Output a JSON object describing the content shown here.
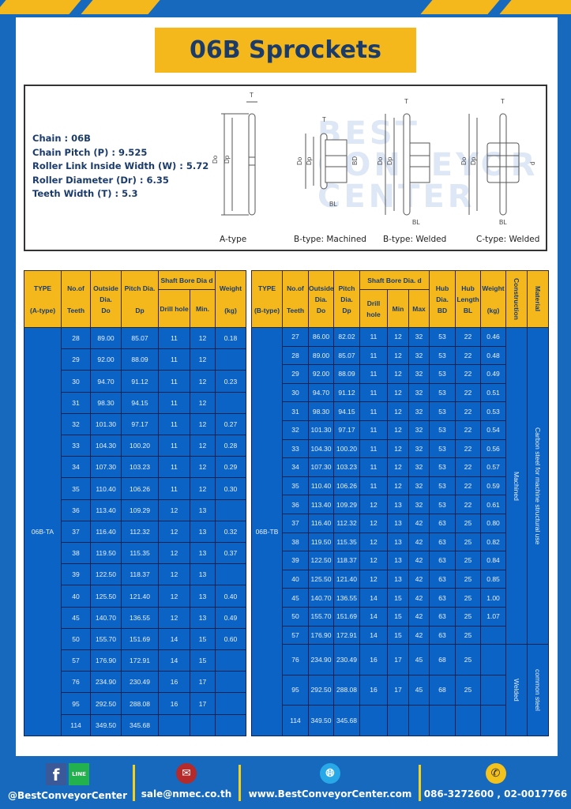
{
  "title": "06B Sprockets",
  "specs": [
    {
      "label": "Chain",
      "value": "06B",
      "text": "Chain : 06B"
    },
    {
      "label": "Chain Pitch (P)",
      "value": "9.525",
      "text": "Chain Pitch (P) : 9.525"
    },
    {
      "label": "Roller Link Inside Width (W)",
      "value": "5.72",
      "text": "Roller Link Inside Width (W) : 5.72"
    },
    {
      "label": "Roller Diameter (Dr)",
      "value": "6.35",
      "text": "Roller Diameter (Dr) : 6.35"
    },
    {
      "label": "Teeth Width (T)",
      "value": "5.3",
      "text": "Teeth Width (T) : 5.3"
    }
  ],
  "diagrams": [
    {
      "caption": "A-type"
    },
    {
      "caption": "B-type: Machined"
    },
    {
      "caption": "B-type: Welded"
    },
    {
      "caption": "C-type: Welded"
    }
  ],
  "diagram_labels": {
    "T": "T",
    "Do": "Do",
    "Dp": "Dp",
    "d": "d",
    "BD": "BD",
    "BL": "BL"
  },
  "watermark": "BEST CONVEYOR CENTER",
  "table_a": {
    "headers": {
      "type": "TYPE",
      "type_sub": "(A-type)",
      "teeth": "No.of",
      "teeth_sub": "Teeth",
      "do": "Outside",
      "do_sub": "Dia.",
      "do_sub2": "Do",
      "dp": "Pitch Dia.",
      "dp_sub": "Dp",
      "bore": "Shaft Bore Dia d",
      "drill": "Drill hole",
      "min": "Min.",
      "weight": "Weight",
      "weight_sub": "(kg)"
    },
    "type_value": "06B-TA",
    "rows": [
      [
        "28",
        "89.00",
        "85.07",
        "11",
        "12",
        "0.18"
      ],
      [
        "29",
        "92.00",
        "88.09",
        "11",
        "12",
        ""
      ],
      [
        "30",
        "94.70",
        "91.12",
        "11",
        "12",
        "0.23"
      ],
      [
        "31",
        "98.30",
        "94.15",
        "11",
        "12",
        ""
      ],
      [
        "32",
        "101.30",
        "97.17",
        "11",
        "12",
        "0.27"
      ],
      [
        "33",
        "104.30",
        "100.20",
        "11",
        "12",
        "0.28"
      ],
      [
        "34",
        "107.30",
        "103.23",
        "11",
        "12",
        "0.29"
      ],
      [
        "35",
        "110.40",
        "106.26",
        "11",
        "12",
        "0.30"
      ],
      [
        "36",
        "113.40",
        "109.29",
        "12",
        "13",
        ""
      ],
      [
        "37",
        "116.40",
        "112.32",
        "12",
        "13",
        "0.32"
      ],
      [
        "38",
        "119.50",
        "115.35",
        "12",
        "13",
        "0.37"
      ],
      [
        "39",
        "122.50",
        "118.37",
        "12",
        "13",
        ""
      ],
      [
        "40",
        "125.50",
        "121.40",
        "12",
        "13",
        "0.40"
      ],
      [
        "45",
        "140.70",
        "136.55",
        "12",
        "13",
        "0.49"
      ],
      [
        "50",
        "155.70",
        "151.69",
        "14",
        "15",
        "0.60"
      ],
      [
        "57",
        "176.90",
        "172.91",
        "14",
        "15",
        ""
      ],
      [
        "76",
        "234.90",
        "230.49",
        "16",
        "17",
        ""
      ],
      [
        "95",
        "292.50",
        "288.08",
        "16",
        "17",
        ""
      ],
      [
        "114",
        "349.50",
        "345.68",
        "",
        "",
        ""
      ]
    ]
  },
  "table_b": {
    "headers": {
      "type": "TYPE",
      "type_sub": "(B-type)",
      "teeth": "No.of",
      "teeth_sub": "Teeth",
      "do": "Outside",
      "do_sub": "Dia.",
      "do_sub2": "Do",
      "dp": "Pitch",
      "dp_sub": "Dia.",
      "dp_sub2": "Dp",
      "bore": "Shaft Bore Dia. d",
      "drill": "Drill hole",
      "min": "Min",
      "max": "Max",
      "bd": "Hub",
      "bd_sub": "Dia.",
      "bd_sub2": "BD",
      "bl": "Hub",
      "bl_sub": "Length",
      "bl_sub2": "BL",
      "weight": "Weight",
      "weight_sub": "(kg)",
      "construction": "Construction",
      "material": "Material"
    },
    "type_value": "06B-TB",
    "construction_groups": [
      {
        "label": "Machined",
        "rows": 17
      },
      {
        "label": "Welded",
        "rows": 3
      }
    ],
    "material_groups": [
      {
        "label": "Carbon steel for machine structural use",
        "rows": 17
      },
      {
        "label": "common steel",
        "rows": 3
      }
    ],
    "rows": [
      [
        "27",
        "86.00",
        "82.02",
        "11",
        "12",
        "32",
        "53",
        "22",
        "0.46"
      ],
      [
        "28",
        "89.00",
        "85.07",
        "11",
        "12",
        "32",
        "53",
        "22",
        "0.48"
      ],
      [
        "29",
        "92.00",
        "88.09",
        "11",
        "12",
        "32",
        "53",
        "22",
        "0.49"
      ],
      [
        "30",
        "94.70",
        "91.12",
        "11",
        "12",
        "32",
        "53",
        "22",
        "0.51"
      ],
      [
        "31",
        "98.30",
        "94.15",
        "11",
        "12",
        "32",
        "53",
        "22",
        "0.53"
      ],
      [
        "32",
        "101.30",
        "97.17",
        "11",
        "12",
        "32",
        "53",
        "22",
        "0.54"
      ],
      [
        "33",
        "104.30",
        "100.20",
        "11",
        "12",
        "32",
        "53",
        "22",
        "0.56"
      ],
      [
        "34",
        "107.30",
        "103.23",
        "11",
        "12",
        "32",
        "53",
        "22",
        "0.57"
      ],
      [
        "35",
        "110.40",
        "106.26",
        "11",
        "12",
        "32",
        "53",
        "22",
        "0.59"
      ],
      [
        "36",
        "113.40",
        "109.29",
        "12",
        "13",
        "32",
        "53",
        "22",
        "0.61"
      ],
      [
        "37",
        "116.40",
        "112.32",
        "12",
        "13",
        "42",
        "63",
        "25",
        "0.80"
      ],
      [
        "38",
        "119.50",
        "115.35",
        "12",
        "13",
        "42",
        "63",
        "25",
        "0.82"
      ],
      [
        "39",
        "122.50",
        "118.37",
        "12",
        "13",
        "42",
        "63",
        "25",
        "0.84"
      ],
      [
        "40",
        "125.50",
        "121.40",
        "12",
        "13",
        "42",
        "63",
        "25",
        "0.85"
      ],
      [
        "45",
        "140.70",
        "136.55",
        "14",
        "15",
        "42",
        "63",
        "25",
        "1.00"
      ],
      [
        "50",
        "155.70",
        "151.69",
        "14",
        "15",
        "42",
        "63",
        "25",
        "1.07"
      ],
      [
        "57",
        "176.90",
        "172.91",
        "14",
        "15",
        "42",
        "63",
        "25",
        ""
      ],
      [
        "76",
        "234.90",
        "230.49",
        "16",
        "17",
        "45",
        "68",
        "25",
        ""
      ],
      [
        "95",
        "292.50",
        "288.08",
        "16",
        "17",
        "45",
        "68",
        "25",
        ""
      ],
      [
        "114",
        "349.50",
        "345.68",
        "",
        "",
        "",
        "",
        "",
        ""
      ]
    ]
  },
  "footer": {
    "social": "@BestConveyorCenter",
    "line_icon_text": "LINE",
    "email": "sale@nmec.co.th",
    "website": "www.BestConveyorCenter.com",
    "phone": "086-3272600 , 02-0017766"
  },
  "colors": {
    "brand_blue": "#1669bd",
    "cell_blue": "#0b64c5",
    "accent_yellow": "#f4b81c",
    "title_text": "#1b3c6b"
  }
}
